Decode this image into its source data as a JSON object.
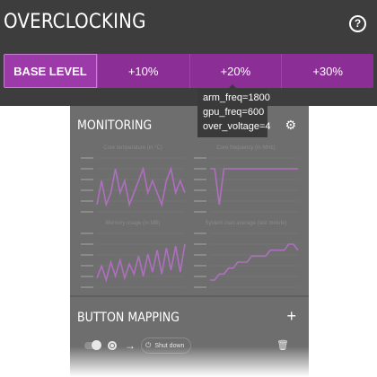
{
  "overclocking": {
    "title": "OVERCLOCKING",
    "help_icon": "?",
    "levels": [
      {
        "label": "BASE LEVEL",
        "active": true
      },
      {
        "label": "+10%",
        "active": false
      },
      {
        "label": "+20%",
        "active": false
      },
      {
        "label": "+30%",
        "active": false
      }
    ],
    "tooltip": {
      "lines": [
        "arm_freq=1800",
        "gpu_freq=600",
        "over_voltage=4"
      ]
    }
  },
  "monitoring": {
    "title": "MONITORING",
    "settings_icon": "gear-icon",
    "charts": [
      {
        "title": "Core temperature (in °C)",
        "series": [
          60,
          62,
          60,
          61,
          63,
          61,
          62,
          60,
          61,
          62,
          63,
          61,
          62,
          61,
          60,
          62,
          63,
          61,
          62,
          61
        ]
      },
      {
        "title": "Core frequency (in MHz)",
        "series": [
          1800,
          1800,
          600,
          1800,
          1800,
          1800,
          1800,
          1800,
          1800,
          1800,
          1800,
          1800,
          1800,
          1800,
          1800,
          1800,
          1800,
          1800,
          1800,
          1800
        ]
      },
      {
        "title": "Memory usage (in MB)",
        "series": [
          120,
          180,
          110,
          200,
          130,
          210,
          120,
          190,
          140,
          230,
          130,
          240,
          150,
          260,
          140,
          270,
          160,
          280,
          150,
          290
        ]
      },
      {
        "title": "System load average (last minute)",
        "series": [
          0.9,
          0.9,
          1.0,
          1.0,
          1.1,
          1.1,
          1.2,
          1.2,
          1.2,
          1.3,
          1.3,
          1.3,
          1.3,
          1.4,
          1.4,
          1.4,
          1.4,
          1.5,
          1.5,
          1.4
        ]
      }
    ]
  },
  "button_mapping": {
    "title": "BUTTON MAPPING",
    "add_icon": "+",
    "rows": [
      {
        "arrow": "→",
        "action": "Shut down"
      }
    ]
  },
  "colors": {
    "accent": "#8b2f97",
    "panel": "#3d3d3d",
    "chart_line": "#b06ec0"
  }
}
